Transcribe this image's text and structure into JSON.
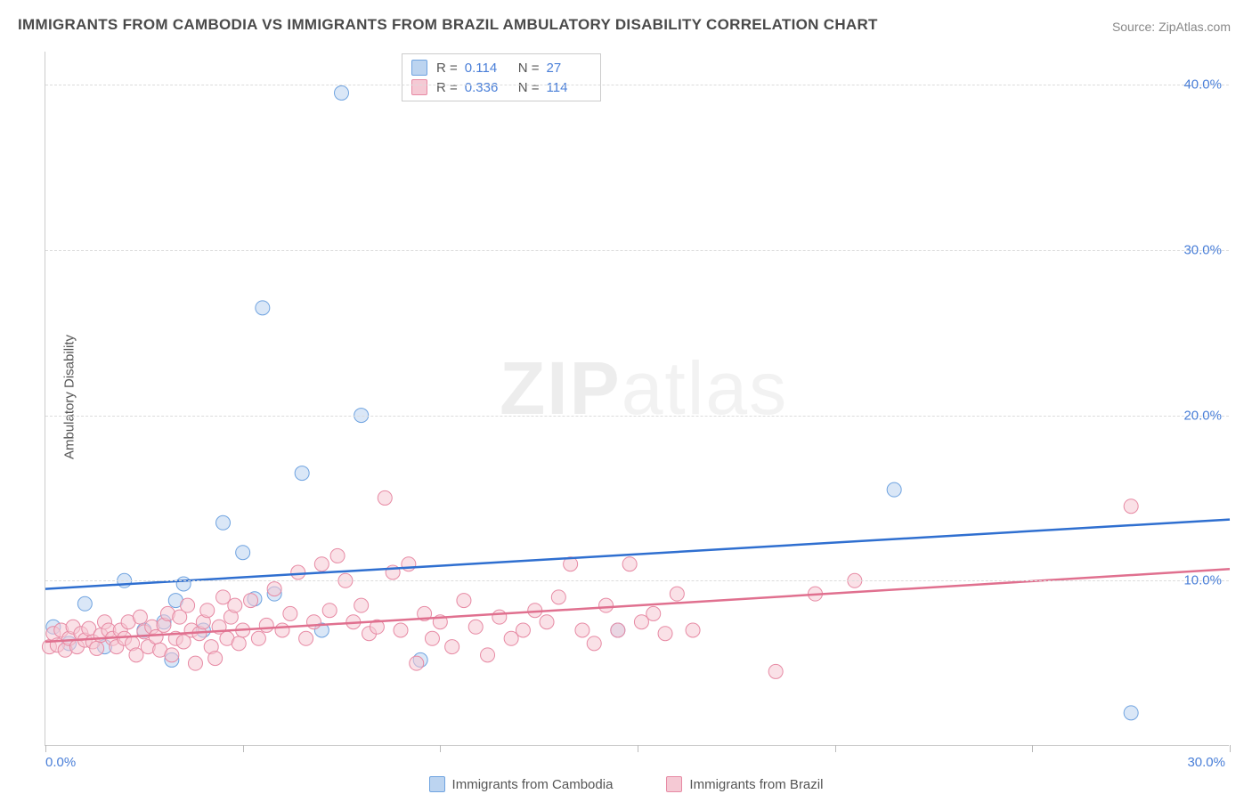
{
  "title": "IMMIGRANTS FROM CAMBODIA VS IMMIGRANTS FROM BRAZIL AMBULATORY DISABILITY CORRELATION CHART",
  "source_label": "Source:",
  "source_name": "ZipAtlas.com",
  "ylabel": "Ambulatory Disability",
  "watermark_a": "ZIP",
  "watermark_b": "atlas",
  "chart": {
    "type": "scatter",
    "xlim": [
      0,
      30
    ],
    "ylim": [
      0,
      42
    ],
    "xticks": [
      0,
      5,
      10,
      15,
      20,
      25,
      30
    ],
    "xtick_labels_shown": {
      "0": "0.0%",
      "30": "30.0%"
    },
    "yticks": [
      10,
      20,
      30,
      40
    ],
    "ytick_labels": [
      "10.0%",
      "20.0%",
      "30.0%",
      "40.0%"
    ],
    "grid_color": "#dcdcdc",
    "background": "#ffffff",
    "marker_radius": 8,
    "marker_opacity": 0.55,
    "series": [
      {
        "name": "Immigrants from Cambodia",
        "color_fill": "#bcd4f0",
        "color_stroke": "#6fa3e0",
        "line_color": "#2f6fd0",
        "R": "0.114",
        "N": "27",
        "trend": {
          "x0": 0,
          "y0": 9.5,
          "x1": 30,
          "y1": 13.7
        },
        "points": [
          [
            0.2,
            7.2
          ],
          [
            0.6,
            6.2
          ],
          [
            1.0,
            8.6
          ],
          [
            1.5,
            6.0
          ],
          [
            2.0,
            10.0
          ],
          [
            2.5,
            7.0
          ],
          [
            3.0,
            7.5
          ],
          [
            3.2,
            5.2
          ],
          [
            3.3,
            8.8
          ],
          [
            3.5,
            9.8
          ],
          [
            4.0,
            7.0
          ],
          [
            4.5,
            13.5
          ],
          [
            5.0,
            11.7
          ],
          [
            5.3,
            8.9
          ],
          [
            5.5,
            26.5
          ],
          [
            5.8,
            9.2
          ],
          [
            6.5,
            16.5
          ],
          [
            7.0,
            7.0
          ],
          [
            7.5,
            39.5
          ],
          [
            8.0,
            20.0
          ],
          [
            9.5,
            5.2
          ],
          [
            14.5,
            7.0
          ],
          [
            21.5,
            15.5
          ],
          [
            27.5,
            2.0
          ]
        ]
      },
      {
        "name": "Immigrants from Brazil",
        "color_fill": "#f5c9d4",
        "color_stroke": "#e78aa4",
        "line_color": "#e0708f",
        "R": "0.336",
        "N": "114",
        "trend": {
          "x0": 0,
          "y0": 6.3,
          "x1": 30,
          "y1": 10.7
        },
        "points": [
          [
            0.1,
            6.0
          ],
          [
            0.2,
            6.8
          ],
          [
            0.3,
            6.1
          ],
          [
            0.4,
            7.0
          ],
          [
            0.5,
            5.8
          ],
          [
            0.6,
            6.5
          ],
          [
            0.7,
            7.2
          ],
          [
            0.8,
            6.0
          ],
          [
            0.9,
            6.8
          ],
          [
            1.0,
            6.4
          ],
          [
            1.1,
            7.1
          ],
          [
            1.2,
            6.3
          ],
          [
            1.3,
            5.9
          ],
          [
            1.4,
            6.7
          ],
          [
            1.5,
            7.5
          ],
          [
            1.6,
            7.0
          ],
          [
            1.7,
            6.5
          ],
          [
            1.8,
            6.0
          ],
          [
            1.9,
            7.0
          ],
          [
            2.0,
            6.5
          ],
          [
            2.1,
            7.5
          ],
          [
            2.2,
            6.2
          ],
          [
            2.3,
            5.5
          ],
          [
            2.4,
            7.8
          ],
          [
            2.5,
            6.9
          ],
          [
            2.6,
            6.0
          ],
          [
            2.7,
            7.2
          ],
          [
            2.8,
            6.6
          ],
          [
            2.9,
            5.8
          ],
          [
            3.0,
            7.3
          ],
          [
            3.1,
            8.0
          ],
          [
            3.2,
            5.5
          ],
          [
            3.3,
            6.5
          ],
          [
            3.4,
            7.8
          ],
          [
            3.5,
            6.3
          ],
          [
            3.6,
            8.5
          ],
          [
            3.7,
            7.0
          ],
          [
            3.8,
            5.0
          ],
          [
            3.9,
            6.8
          ],
          [
            4.0,
            7.5
          ],
          [
            4.1,
            8.2
          ],
          [
            4.2,
            6.0
          ],
          [
            4.3,
            5.3
          ],
          [
            4.4,
            7.2
          ],
          [
            4.5,
            9.0
          ],
          [
            4.6,
            6.5
          ],
          [
            4.7,
            7.8
          ],
          [
            4.8,
            8.5
          ],
          [
            4.9,
            6.2
          ],
          [
            5.0,
            7.0
          ],
          [
            5.2,
            8.8
          ],
          [
            5.4,
            6.5
          ],
          [
            5.6,
            7.3
          ],
          [
            5.8,
            9.5
          ],
          [
            6.0,
            7.0
          ],
          [
            6.2,
            8.0
          ],
          [
            6.4,
            10.5
          ],
          [
            6.6,
            6.5
          ],
          [
            6.8,
            7.5
          ],
          [
            7.0,
            11.0
          ],
          [
            7.2,
            8.2
          ],
          [
            7.4,
            11.5
          ],
          [
            7.6,
            10.0
          ],
          [
            7.8,
            7.5
          ],
          [
            8.0,
            8.5
          ],
          [
            8.2,
            6.8
          ],
          [
            8.4,
            7.2
          ],
          [
            8.6,
            15.0
          ],
          [
            8.8,
            10.5
          ],
          [
            9.0,
            7.0
          ],
          [
            9.2,
            11.0
          ],
          [
            9.4,
            5.0
          ],
          [
            9.6,
            8.0
          ],
          [
            9.8,
            6.5
          ],
          [
            10.0,
            7.5
          ],
          [
            10.3,
            6.0
          ],
          [
            10.6,
            8.8
          ],
          [
            10.9,
            7.2
          ],
          [
            11.2,
            5.5
          ],
          [
            11.5,
            7.8
          ],
          [
            11.8,
            6.5
          ],
          [
            12.1,
            7.0
          ],
          [
            12.4,
            8.2
          ],
          [
            12.7,
            7.5
          ],
          [
            13.0,
            9.0
          ],
          [
            13.3,
            11.0
          ],
          [
            13.6,
            7.0
          ],
          [
            13.9,
            6.2
          ],
          [
            14.2,
            8.5
          ],
          [
            14.5,
            7.0
          ],
          [
            14.8,
            11.0
          ],
          [
            15.1,
            7.5
          ],
          [
            15.4,
            8.0
          ],
          [
            15.7,
            6.8
          ],
          [
            16.0,
            9.2
          ],
          [
            16.4,
            7.0
          ],
          [
            18.5,
            4.5
          ],
          [
            19.5,
            9.2
          ],
          [
            20.5,
            10.0
          ],
          [
            27.5,
            14.5
          ]
        ]
      }
    ]
  },
  "legend_top_labels": {
    "R": "R  =",
    "N": "N  ="
  },
  "bottom_legend": [
    {
      "swatch_fill": "#bcd4f0",
      "swatch_stroke": "#6fa3e0",
      "label": "Immigrants from Cambodia"
    },
    {
      "swatch_fill": "#f5c9d4",
      "swatch_stroke": "#e78aa4",
      "label": "Immigrants from Brazil"
    }
  ]
}
